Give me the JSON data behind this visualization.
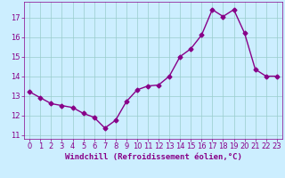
{
  "x": [
    0,
    1,
    2,
    3,
    4,
    5,
    6,
    7,
    8,
    9,
    10,
    11,
    12,
    13,
    14,
    15,
    16,
    17,
    18,
    19,
    20,
    21,
    22,
    23
  ],
  "y": [
    13.2,
    12.9,
    12.6,
    12.5,
    12.4,
    12.1,
    11.9,
    11.35,
    11.75,
    12.7,
    13.3,
    13.5,
    13.55,
    14.0,
    15.0,
    15.4,
    16.1,
    17.4,
    17.05,
    17.4,
    16.2,
    14.35,
    14.0,
    14.0
  ],
  "line_color": "#880088",
  "marker": "D",
  "marker_size": 2.5,
  "bg_color": "#cceeff",
  "ylim": [
    10.8,
    17.8
  ],
  "xlim": [
    -0.5,
    23.5
  ],
  "yticks": [
    11,
    12,
    13,
    14,
    15,
    16,
    17
  ],
  "xticks": [
    0,
    1,
    2,
    3,
    4,
    5,
    6,
    7,
    8,
    9,
    10,
    11,
    12,
    13,
    14,
    15,
    16,
    17,
    18,
    19,
    20,
    21,
    22,
    23
  ],
  "xlabel": "Windchill (Refroidissement éolien,°C)",
  "xlabel_fontsize": 6.5,
  "tick_fontsize": 6,
  "grid_color": "#99cccc",
  "line_width": 1.0
}
